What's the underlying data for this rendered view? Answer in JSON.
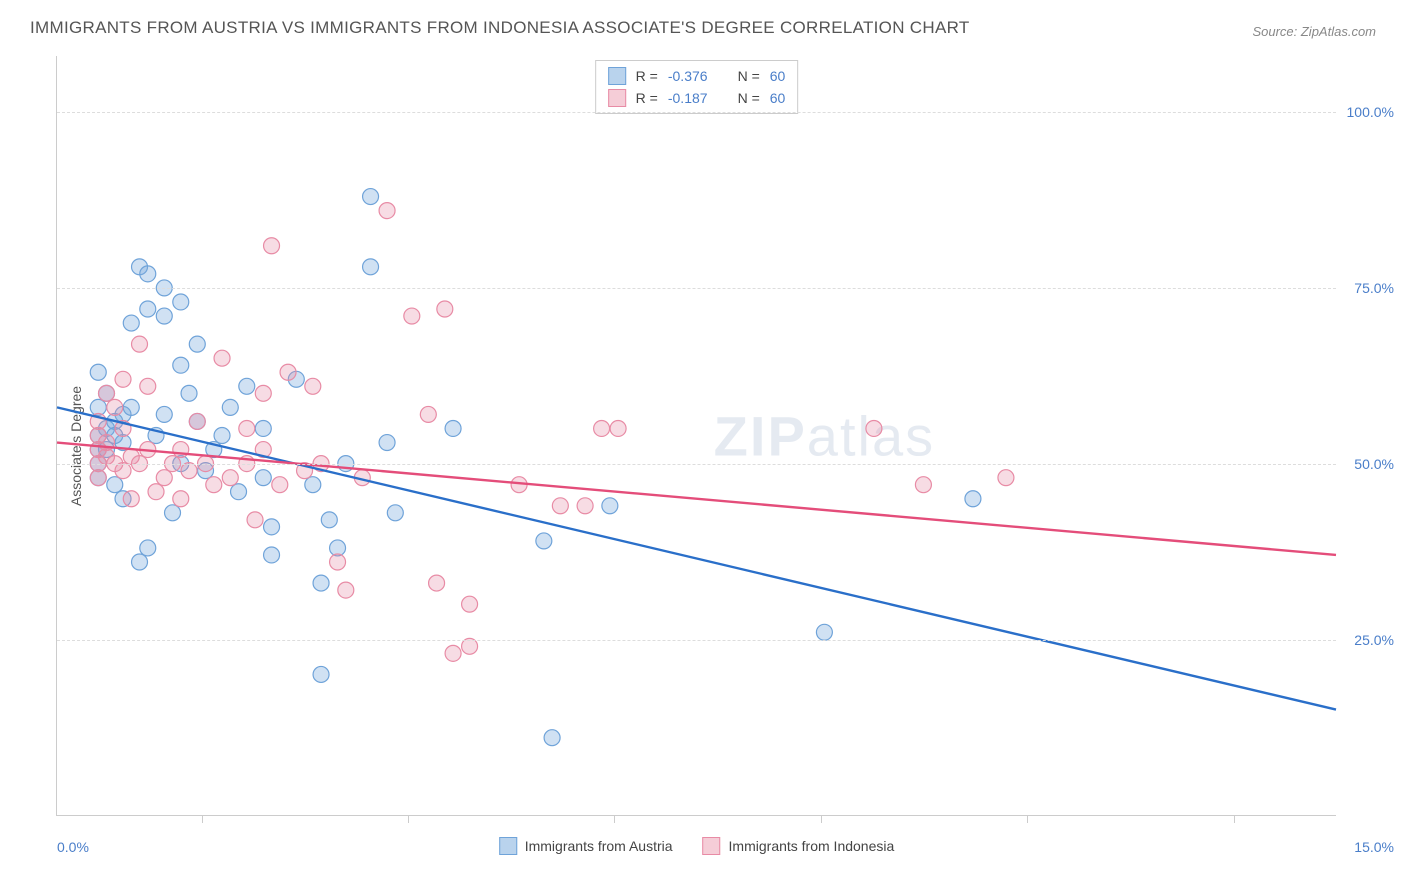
{
  "title": "IMMIGRANTS FROM AUSTRIA VS IMMIGRANTS FROM INDONESIA ASSOCIATE'S DEGREE CORRELATION CHART",
  "source": "Source: ZipAtlas.com",
  "watermark_bold": "ZIP",
  "watermark_light": "atlas",
  "chart": {
    "type": "scatter-with-regression",
    "ylabel": "Associate's Degree",
    "xlim": [
      -0.5,
      15.0
    ],
    "ylim": [
      0,
      108
    ],
    "x_left_label": "0.0%",
    "x_right_label": "15.0%",
    "yticks": [
      25.0,
      50.0,
      75.0,
      100.0
    ],
    "ytick_labels": [
      "25.0%",
      "50.0%",
      "75.0%",
      "100.0%"
    ],
    "xtick_positions": [
      1.25,
      3.75,
      6.25,
      8.75,
      11.25,
      13.75
    ],
    "grid_color": "#dddddd",
    "axis_color": "#cccccc",
    "background_color": "#ffffff",
    "marker_radius": 8,
    "marker_stroke_width": 1.2,
    "line_width": 2.4,
    "series": [
      {
        "name": "Immigrants from Austria",
        "swatch_fill": "#b9d3ed",
        "swatch_stroke": "#6fa3d9",
        "marker_fill": "rgba(120,170,220,0.35)",
        "marker_stroke": "#6fa3d9",
        "line_color": "#2a6fc9",
        "R": "-0.376",
        "N": "60",
        "regression": {
          "x1": -0.5,
          "y1": 58,
          "x2": 15.0,
          "y2": 15
        },
        "points": [
          [
            0.0,
            63
          ],
          [
            0.0,
            58
          ],
          [
            0.0,
            52
          ],
          [
            0.0,
            50
          ],
          [
            0.0,
            48
          ],
          [
            0.1,
            55
          ],
          [
            0.1,
            60
          ],
          [
            0.2,
            56
          ],
          [
            0.2,
            54
          ],
          [
            0.3,
            53
          ],
          [
            0.3,
            57
          ],
          [
            0.4,
            70
          ],
          [
            0.5,
            78
          ],
          [
            0.6,
            77
          ],
          [
            0.6,
            72
          ],
          [
            0.8,
            75
          ],
          [
            0.8,
            71
          ],
          [
            1.0,
            73
          ],
          [
            1.0,
            64
          ],
          [
            1.1,
            60
          ],
          [
            1.2,
            67
          ],
          [
            1.2,
            56
          ],
          [
            1.3,
            49
          ],
          [
            1.4,
            52
          ],
          [
            1.6,
            58
          ],
          [
            1.8,
            61
          ],
          [
            2.0,
            55
          ],
          [
            2.0,
            48
          ],
          [
            2.1,
            41
          ],
          [
            2.1,
            37
          ],
          [
            2.4,
            62
          ],
          [
            2.6,
            47
          ],
          [
            2.7,
            33
          ],
          [
            2.8,
            42
          ],
          [
            2.9,
            38
          ],
          [
            3.0,
            50
          ],
          [
            3.3,
            88
          ],
          [
            3.3,
            78
          ],
          [
            3.5,
            53
          ],
          [
            3.6,
            43
          ],
          [
            2.7,
            20
          ],
          [
            4.3,
            55
          ],
          [
            5.4,
            39
          ],
          [
            5.5,
            11
          ],
          [
            6.2,
            44
          ],
          [
            8.8,
            26
          ],
          [
            10.6,
            45
          ],
          [
            0.5,
            36
          ],
          [
            0.6,
            38
          ],
          [
            0.9,
            43
          ],
          [
            1.0,
            50
          ],
          [
            0.2,
            47
          ],
          [
            0.3,
            45
          ],
          [
            0.0,
            54
          ],
          [
            0.1,
            52
          ],
          [
            0.4,
            58
          ],
          [
            0.7,
            54
          ],
          [
            0.8,
            57
          ],
          [
            1.5,
            54
          ],
          [
            1.7,
            46
          ]
        ]
      },
      {
        "name": "Immigrants from Indonesia",
        "swatch_fill": "#f5cdd7",
        "swatch_stroke": "#e88ba5",
        "marker_fill": "rgba(230,140,165,0.30)",
        "marker_stroke": "#e88ba5",
        "line_color": "#e44d7a",
        "R": "-0.187",
        "N": "60",
        "regression": {
          "x1": -0.5,
          "y1": 53,
          "x2": 15.0,
          "y2": 37
        },
        "points": [
          [
            0.0,
            56
          ],
          [
            0.0,
            54
          ],
          [
            0.0,
            52
          ],
          [
            0.0,
            50
          ],
          [
            0.0,
            48
          ],
          [
            0.1,
            53
          ],
          [
            0.1,
            51
          ],
          [
            0.2,
            58
          ],
          [
            0.2,
            50
          ],
          [
            0.3,
            55
          ],
          [
            0.3,
            49
          ],
          [
            0.4,
            51
          ],
          [
            0.5,
            67
          ],
          [
            0.5,
            50
          ],
          [
            0.6,
            61
          ],
          [
            0.6,
            52
          ],
          [
            0.7,
            46
          ],
          [
            0.8,
            48
          ],
          [
            0.9,
            50
          ],
          [
            1.0,
            52
          ],
          [
            1.0,
            45
          ],
          [
            1.1,
            49
          ],
          [
            1.2,
            56
          ],
          [
            1.3,
            50
          ],
          [
            1.4,
            47
          ],
          [
            1.5,
            65
          ],
          [
            1.6,
            48
          ],
          [
            1.8,
            55
          ],
          [
            1.8,
            50
          ],
          [
            1.9,
            42
          ],
          [
            2.0,
            60
          ],
          [
            2.0,
            52
          ],
          [
            2.1,
            81
          ],
          [
            2.2,
            47
          ],
          [
            2.3,
            63
          ],
          [
            2.5,
            49
          ],
          [
            2.6,
            61
          ],
          [
            2.7,
            50
          ],
          [
            2.9,
            36
          ],
          [
            3.0,
            32
          ],
          [
            3.2,
            48
          ],
          [
            3.5,
            86
          ],
          [
            3.8,
            71
          ],
          [
            4.0,
            57
          ],
          [
            4.1,
            33
          ],
          [
            4.2,
            72
          ],
          [
            4.3,
            23
          ],
          [
            4.5,
            30
          ],
          [
            4.5,
            24
          ],
          [
            5.1,
            47
          ],
          [
            5.6,
            44
          ],
          [
            5.9,
            44
          ],
          [
            6.1,
            55
          ],
          [
            6.3,
            55
          ],
          [
            9.4,
            55
          ],
          [
            10.0,
            47
          ],
          [
            11.0,
            48
          ],
          [
            0.4,
            45
          ],
          [
            0.3,
            62
          ],
          [
            0.1,
            60
          ]
        ]
      }
    ]
  },
  "legend_top_labels": {
    "R": "R =",
    "N": "N ="
  }
}
